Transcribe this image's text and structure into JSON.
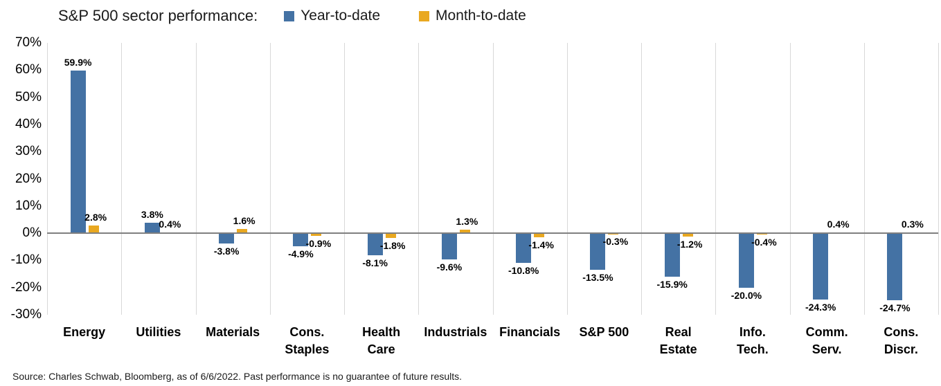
{
  "header": {
    "title": "S&P 500 sector performance:",
    "legend": [
      {
        "label": "Year-to-date",
        "color": "#4472A4"
      },
      {
        "label": "Month-to-date",
        "color": "#E9A820"
      }
    ]
  },
  "chart_data": {
    "type": "bar",
    "title": "S&P 500 sector performance:",
    "categories": [
      "Energy",
      "Utilities",
      "Materials",
      "Cons. Staples",
      "Health Care",
      "Industrials",
      "Financials",
      "S&P 500",
      "Real Estate",
      "Info. Tech.",
      "Comm. Serv.",
      "Cons. Discr."
    ],
    "category_label_lines": [
      [
        "Energy"
      ],
      [
        "Utilities"
      ],
      [
        "Materials"
      ],
      [
        "Cons.",
        "Staples"
      ],
      [
        "Health",
        "Care"
      ],
      [
        "Industrials"
      ],
      [
        "Financials"
      ],
      [
        "S&P 500"
      ],
      [
        "Real",
        "Estate"
      ],
      [
        "Info.",
        "Tech."
      ],
      [
        "Comm.",
        "Serv."
      ],
      [
        "Cons.",
        "Discr."
      ]
    ],
    "series": [
      {
        "name": "Year-to-date",
        "color": "#4472A4",
        "values": [
          59.9,
          3.8,
          -3.8,
          -4.9,
          -8.1,
          -9.6,
          -10.8,
          -13.5,
          -15.9,
          -20.0,
          -24.3,
          -24.7
        ]
      },
      {
        "name": "Month-to-date",
        "color": "#E9A820",
        "values": [
          2.8,
          0.4,
          1.6,
          -0.9,
          -1.8,
          1.3,
          -1.4,
          -0.3,
          -1.2,
          -0.4,
          0.4,
          0.3
        ]
      }
    ],
    "data_labels": [
      [
        "59.9%",
        "3.8%",
        "-3.8%",
        "-4.9%",
        "-8.1%",
        "-9.6%",
        "-10.8%",
        "-13.5%",
        "-15.9%",
        "-20.0%",
        "-24.3%",
        "-24.7%"
      ],
      [
        "2.8%",
        "0.4%",
        "1.6%",
        "-0.9%",
        "-1.8%",
        "1.3%",
        "-1.4%",
        "-0.3%",
        "-1.2%",
        "-0.4%",
        "0.4%",
        "0.3%"
      ]
    ],
    "ylim": [
      -30,
      70
    ],
    "y_axis": {
      "ticks": [
        70,
        60,
        50,
        40,
        30,
        20,
        10,
        0,
        -10,
        -20,
        -30
      ],
      "labels": [
        "70%",
        "60%",
        "50%",
        "40%",
        "30%",
        "20%",
        "10%",
        "0%",
        "-10%",
        "-20%",
        "-30%"
      ]
    },
    "grid": "vertical",
    "legend_position": "top",
    "zero_line_color": "#7f7f7f",
    "gridline_color": "#d8d8d8"
  },
  "footer": {
    "source": "Source: Charles Schwab, Bloomberg, as of 6/6/2022.  Past performance is no guarantee of future results."
  }
}
